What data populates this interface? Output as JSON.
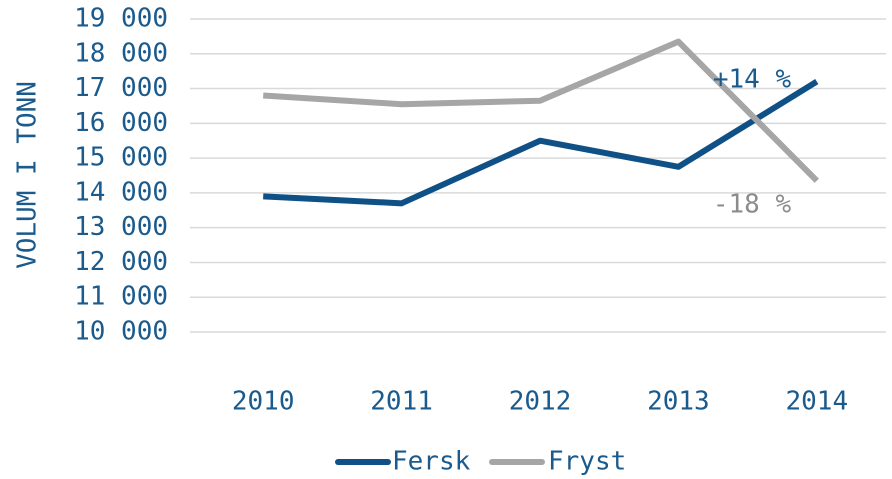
{
  "chart_data": {
    "type": "line",
    "y_label": "VOLUM I TONN",
    "categories": [
      "2010",
      "2011",
      "2012",
      "2013",
      "2014"
    ],
    "series": [
      {
        "name": "Fersk",
        "color": "#0f5186",
        "values": [
          13900,
          13700,
          15500,
          14750,
          17200
        ]
      },
      {
        "name": "Fryst",
        "color": "#a6a6a6",
        "values": [
          16800,
          16550,
          16650,
          18350,
          14350
        ]
      }
    ],
    "annotations": [
      {
        "text": "+14 %",
        "color": "#1a5a8c"
      },
      {
        "text": "-18 %",
        "color": "#8c8c8c"
      }
    ],
    "ylim": [
      10000,
      19000
    ],
    "yticks": [
      {
        "value": 10000,
        "label": "10 000"
      },
      {
        "value": 11000,
        "label": "11 000"
      },
      {
        "value": 12000,
        "label": "12 000"
      },
      {
        "value": 13000,
        "label": "13 000"
      },
      {
        "value": 14000,
        "label": "14 000"
      },
      {
        "value": 15000,
        "label": "15 000"
      },
      {
        "value": 16000,
        "label": "16 000"
      },
      {
        "value": 17000,
        "label": "17 000"
      },
      {
        "value": 18000,
        "label": "18 000"
      },
      {
        "value": 19000,
        "label": "19 000"
      }
    ],
    "grid": true
  }
}
